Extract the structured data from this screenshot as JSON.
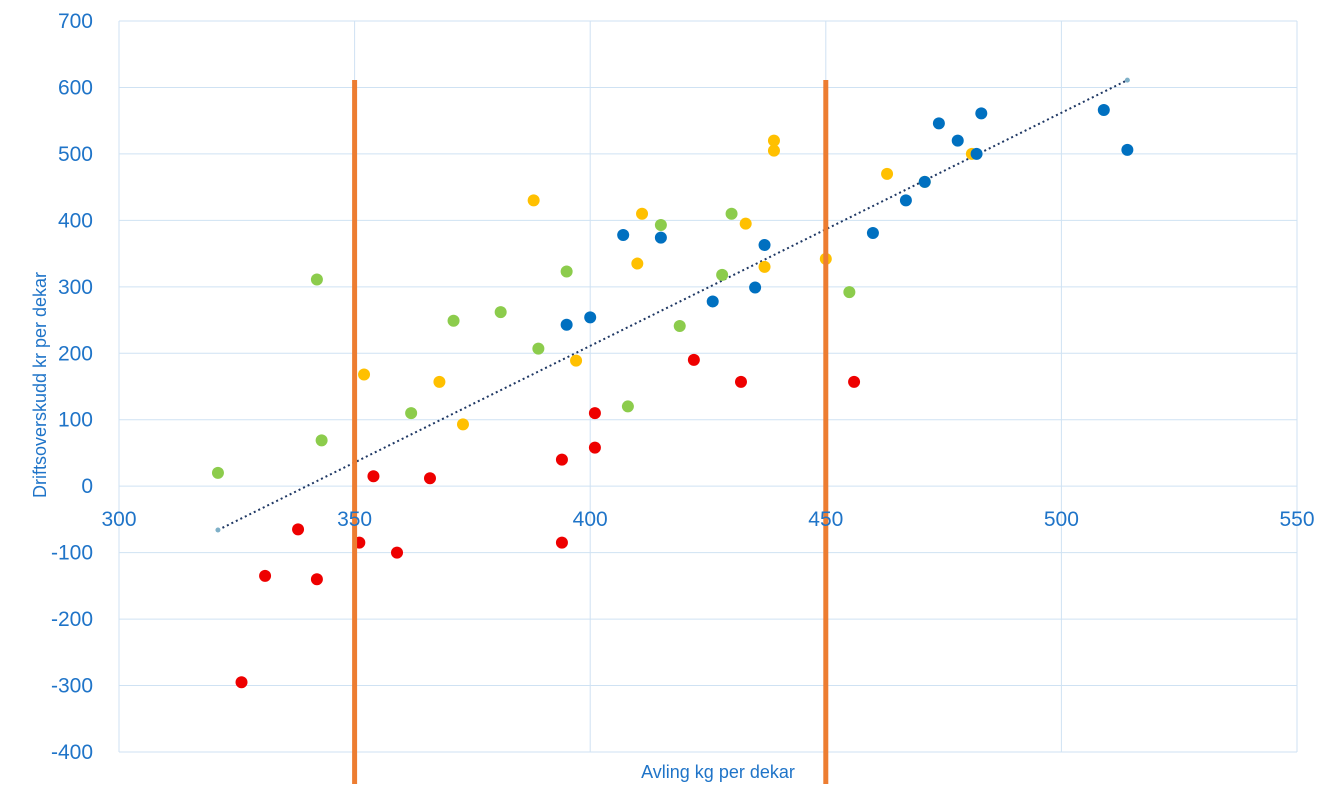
{
  "chart_data": {
    "type": "scatter",
    "title": "",
    "xlabel": "Avling kg per dekar",
    "ylabel": "Driftsoverskudd kr per dekar",
    "xlim": [
      300,
      550
    ],
    "ylim": [
      -400,
      700
    ],
    "xticks": [
      300,
      350,
      400,
      450,
      500,
      550
    ],
    "yticks": [
      -400,
      -300,
      -200,
      -100,
      0,
      100,
      200,
      300,
      400,
      500,
      600,
      700
    ],
    "grid": true,
    "legend": "none",
    "colors": {
      "red": "#ee0000",
      "green": "#8ccc4c",
      "yellow": "#ffc000",
      "blue": "#0070c0",
      "trendline": "#1f3864",
      "vertical_lines": "#ed7d31",
      "gridlines": "#cfe2f3",
      "labels": "#1f74c8"
    },
    "series": [
      {
        "color": "red",
        "points": [
          [
            326,
            -295
          ],
          [
            331,
            -135
          ],
          [
            338,
            -65
          ],
          [
            342,
            -140
          ],
          [
            351,
            -85
          ],
          [
            354,
            15
          ],
          [
            359,
            -100
          ],
          [
            366,
            12
          ],
          [
            394,
            40
          ],
          [
            394,
            -85
          ],
          [
            401,
            58
          ],
          [
            401,
            110
          ],
          [
            422,
            190
          ],
          [
            432,
            157
          ],
          [
            456,
            157
          ]
        ]
      },
      {
        "color": "green",
        "points": [
          [
            321,
            20
          ],
          [
            342,
            311
          ],
          [
            343,
            69
          ],
          [
            362,
            110
          ],
          [
            371,
            249
          ],
          [
            381,
            262
          ],
          [
            389,
            207
          ],
          [
            395,
            323
          ],
          [
            408,
            120
          ],
          [
            415,
            393
          ],
          [
            419,
            241
          ],
          [
            428,
            318
          ],
          [
            430,
            410
          ],
          [
            455,
            292
          ],
          [
            471,
            458
          ]
        ]
      },
      {
        "color": "yellow",
        "points": [
          [
            352,
            168
          ],
          [
            368,
            157
          ],
          [
            373,
            93
          ],
          [
            388,
            430
          ],
          [
            397,
            189
          ],
          [
            410,
            335
          ],
          [
            411,
            410
          ],
          [
            433,
            395
          ],
          [
            437,
            330
          ],
          [
            439,
            520
          ],
          [
            439,
            505
          ],
          [
            450,
            342
          ],
          [
            463,
            470
          ],
          [
            481,
            500
          ]
        ]
      },
      {
        "color": "blue",
        "points": [
          [
            395,
            243
          ],
          [
            400,
            254
          ],
          [
            407,
            378
          ],
          [
            415,
            374
          ],
          [
            426,
            278
          ],
          [
            435,
            299
          ],
          [
            437,
            363
          ],
          [
            460,
            381
          ],
          [
            467,
            430
          ],
          [
            471,
            458
          ],
          [
            474,
            546
          ],
          [
            478,
            520
          ],
          [
            482,
            500
          ],
          [
            483,
            561
          ],
          [
            509,
            566
          ],
          [
            514,
            506
          ]
        ]
      }
    ],
    "trendline": {
      "style": "dotted",
      "from": [
        321,
        -66
      ],
      "to": [
        514,
        611
      ]
    },
    "vertical_lines": [
      350,
      450
    ]
  }
}
